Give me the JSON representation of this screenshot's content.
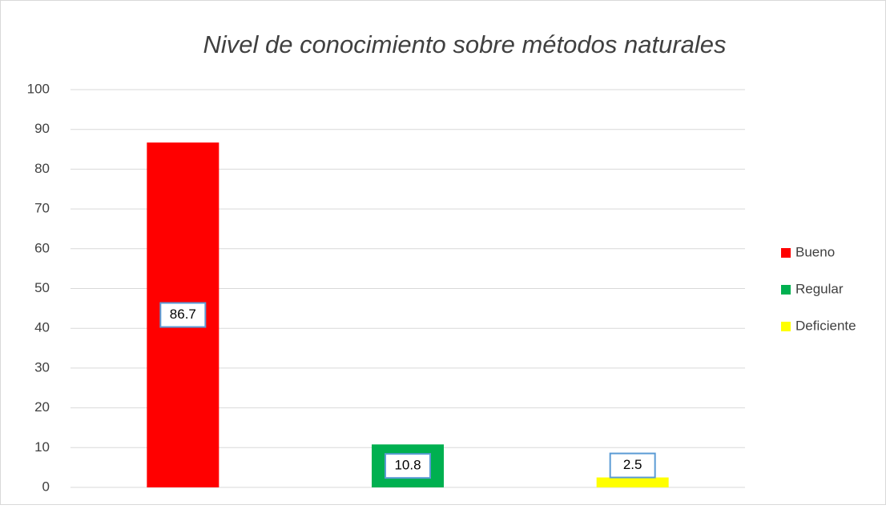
{
  "chart_data": {
    "type": "bar",
    "title": "Nivel de conocimiento sobre métodos naturales",
    "categories": [
      null
    ],
    "series": [
      {
        "name": "Bueno",
        "color": "#ff0000",
        "values": [
          86.7
        ]
      },
      {
        "name": "Regular",
        "color": "#00b050",
        "values": [
          10.8
        ]
      },
      {
        "name": "Deficiente",
        "color": "#ffff00",
        "values": [
          2.5
        ]
      }
    ],
    "ylim": [
      0,
      100
    ],
    "yticks": [
      0,
      10,
      20,
      30,
      40,
      50,
      60,
      70,
      80,
      90,
      100
    ],
    "grid": true,
    "legend": "right"
  }
}
